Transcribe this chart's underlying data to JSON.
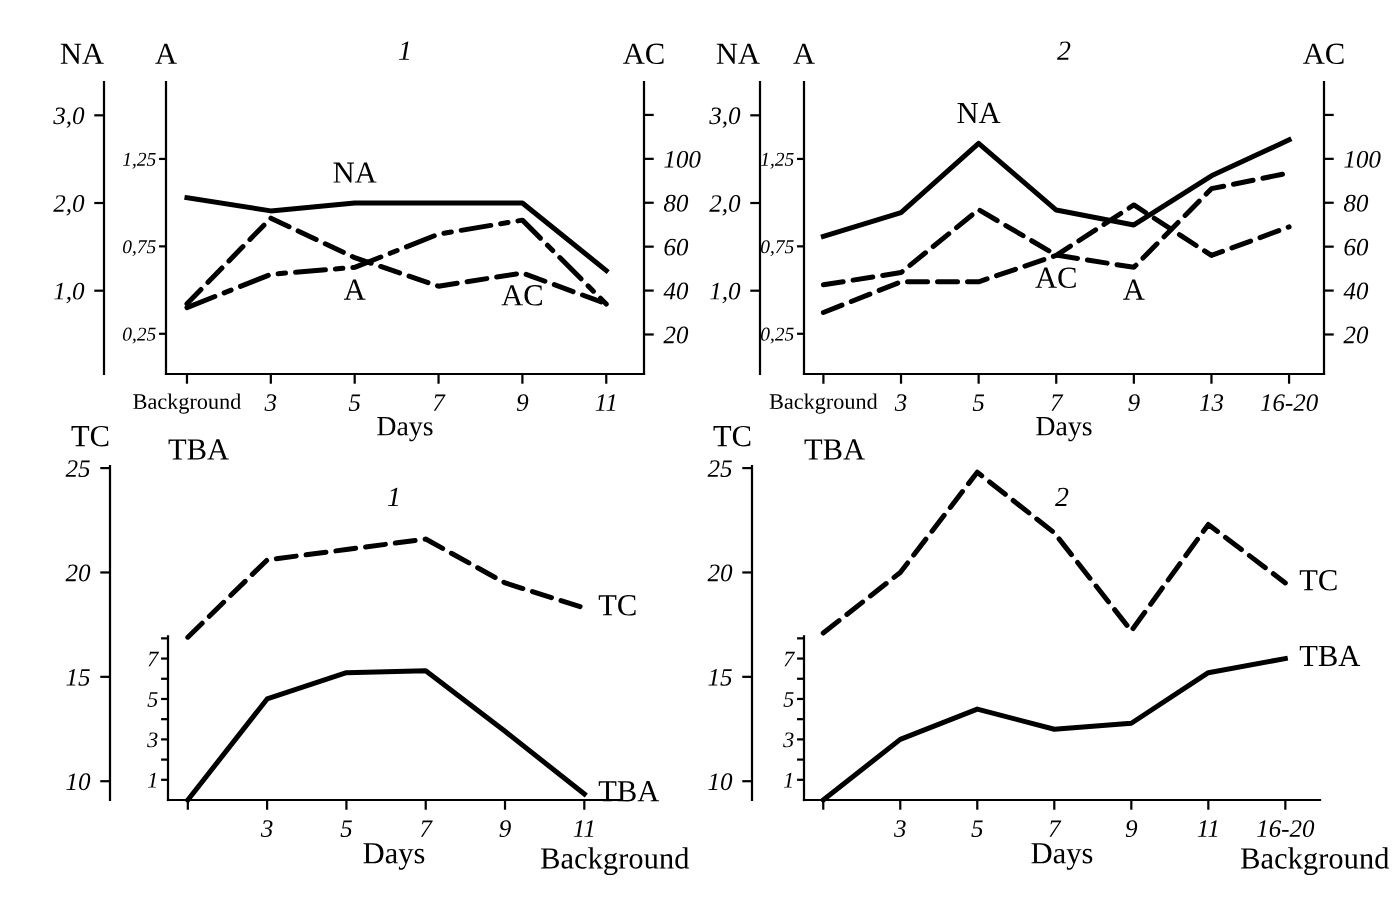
{
  "chart_data": [
    {
      "type": "line",
      "title": "1",
      "xlabel": "Days",
      "ylabel": "NA",
      "y2label": "A",
      "y3label": "AC",
      "grid": false,
      "legend": false,
      "marker": "none",
      "categories": [
        "Background",
        "3",
        "5",
        "7",
        "9",
        "11"
      ],
      "ylim": [
        0.05,
        3.38
      ],
      "yticks": [
        {
          "value": 1,
          "label": "1,0"
        },
        {
          "value": 2,
          "label": "2,0"
        },
        {
          "value": 3,
          "label": "3,0"
        }
      ],
      "y2lim": [
        0.02,
        1.69
      ],
      "y2ticks": [
        {
          "value": 0.25,
          "label": "0,25"
        },
        {
          "value": 0.75,
          "label": "0,75"
        },
        {
          "value": 1.25,
          "label": "1,25"
        }
      ],
      "y3lim": [
        2,
        135
      ],
      "y3ticks": [
        20,
        40,
        60,
        80,
        100,
        {
          "value": 120,
          "label": null
        }
      ],
      "series": [
        {
          "name": "NA",
          "color": "#000000",
          "line_style": "solid",
          "axis": "y",
          "values": [
            2.06,
            1.91,
            2.0,
            2.0,
            2.0,
            1.23
          ]
        },
        {
          "name": "AC",
          "color": "#000000",
          "line_style": "dashed",
          "axis": "y3",
          "values": [
            34,
            73,
            55,
            42,
            48,
            34
          ]
        },
        {
          "name": "A",
          "color": "#000000",
          "line_style": "dashdot",
          "axis": "y2",
          "values": [
            0.4,
            0.59,
            0.63,
            0.82,
            0.9,
            0.42
          ]
        }
      ]
    },
    {
      "type": "line",
      "title": "2",
      "xlabel": "Days",
      "ylabel": "NA",
      "y2label": "A",
      "y3label": "AC",
      "grid": false,
      "legend": false,
      "marker": "none",
      "categories": [
        "Background",
        "3",
        "5",
        "7",
        "9",
        "13",
        "16-20"
      ],
      "ylim": [
        0.05,
        3.38
      ],
      "yticks": [
        {
          "value": 1,
          "label": "1,0"
        },
        {
          "value": 2,
          "label": "2,0"
        },
        {
          "value": 3,
          "label": "3,0"
        }
      ],
      "y2lim": [
        0.02,
        1.69
      ],
      "y2ticks": [
        {
          "value": 0.25,
          "label": "0,25"
        },
        {
          "value": 0.75,
          "label": "0,75"
        },
        {
          "value": 1.25,
          "label": "1,25"
        }
      ],
      "y3lim": [
        2,
        135
      ],
      "y3ticks": [
        20,
        40,
        60,
        80,
        100,
        {
          "value": 120,
          "label": null
        }
      ],
      "series": [
        {
          "name": "NA",
          "color": "#000000",
          "line_style": "solid",
          "axis": "y",
          "values": [
            1.62,
            1.89,
            2.68,
            1.92,
            1.75,
            2.31,
            2.72
          ]
        },
        {
          "name": "A",
          "color": "#000000",
          "line_style": "dashed",
          "axis": "y2",
          "values": [
            0.53,
            0.6,
            0.96,
            0.7,
            0.63,
            1.08,
            1.17
          ]
        },
        {
          "name": "AC",
          "color": "#000000",
          "line_style": "dashed",
          "axis": "y3",
          "values": [
            30,
            44,
            44,
            56,
            79,
            56,
            69
          ]
        }
      ]
    },
    {
      "type": "line",
      "title": "1",
      "xlabel": "Days",
      "ylabel": "TC",
      "y2label": "TBA",
      "grid": false,
      "legend": false,
      "marker": "none",
      "annotations": [
        "Background"
      ],
      "categories": [
        null,
        "3",
        "5",
        "7",
        "9",
        "11"
      ],
      "ylim": [
        9.1,
        25.1
      ],
      "yticks": [
        10,
        15,
        20,
        25
      ],
      "y2lim": [
        0,
        8.1
      ],
      "y2ticks": [
        1,
        {
          "value": 2,
          "label": null
        },
        3,
        {
          "value": 4,
          "label": null
        },
        5,
        {
          "value": 6,
          "label": null
        },
        7,
        {
          "value": 8,
          "label": null
        }
      ],
      "series": [
        {
          "name": "TC",
          "color": "#000000",
          "line_style": "dashed",
          "axis": "y",
          "values": [
            16.9,
            20.6,
            21.1,
            21.6,
            19.5,
            18.3
          ]
        },
        {
          "name": "TBA",
          "color": "#000000",
          "line_style": "solid",
          "axis": "y2",
          "values": [
            0.0,
            5.0,
            6.3,
            6.4,
            3.4,
            0.3
          ]
        }
      ]
    },
    {
      "type": "line",
      "title": "2",
      "xlabel": "Days",
      "ylabel": "TC",
      "y2label": "TBA",
      "grid": false,
      "legend": false,
      "marker": "none",
      "annotations": [
        "Background"
      ],
      "categories": [
        null,
        "3",
        "5",
        "7",
        "9",
        "11",
        "16-20"
      ],
      "ylim": [
        9.1,
        25.1
      ],
      "yticks": [
        10,
        15,
        20,
        25
      ],
      "y2lim": [
        0,
        8.1
      ],
      "y2ticks": [
        1,
        {
          "value": 2,
          "label": null
        },
        3,
        {
          "value": 4,
          "label": null
        },
        5,
        {
          "value": 6,
          "label": null
        },
        7,
        {
          "value": 8,
          "label": null
        }
      ],
      "series": [
        {
          "name": "TC",
          "color": "#000000",
          "line_style": "dashed",
          "axis": "y",
          "values": [
            17.1,
            20.0,
            24.8,
            21.9,
            17.2,
            22.3,
            19.5
          ]
        },
        {
          "name": "TBA",
          "color": "#000000",
          "line_style": "solid",
          "axis": "y2",
          "values": [
            0.0,
            3.0,
            4.5,
            3.5,
            3.8,
            6.3,
            7.0
          ]
        }
      ]
    }
  ]
}
